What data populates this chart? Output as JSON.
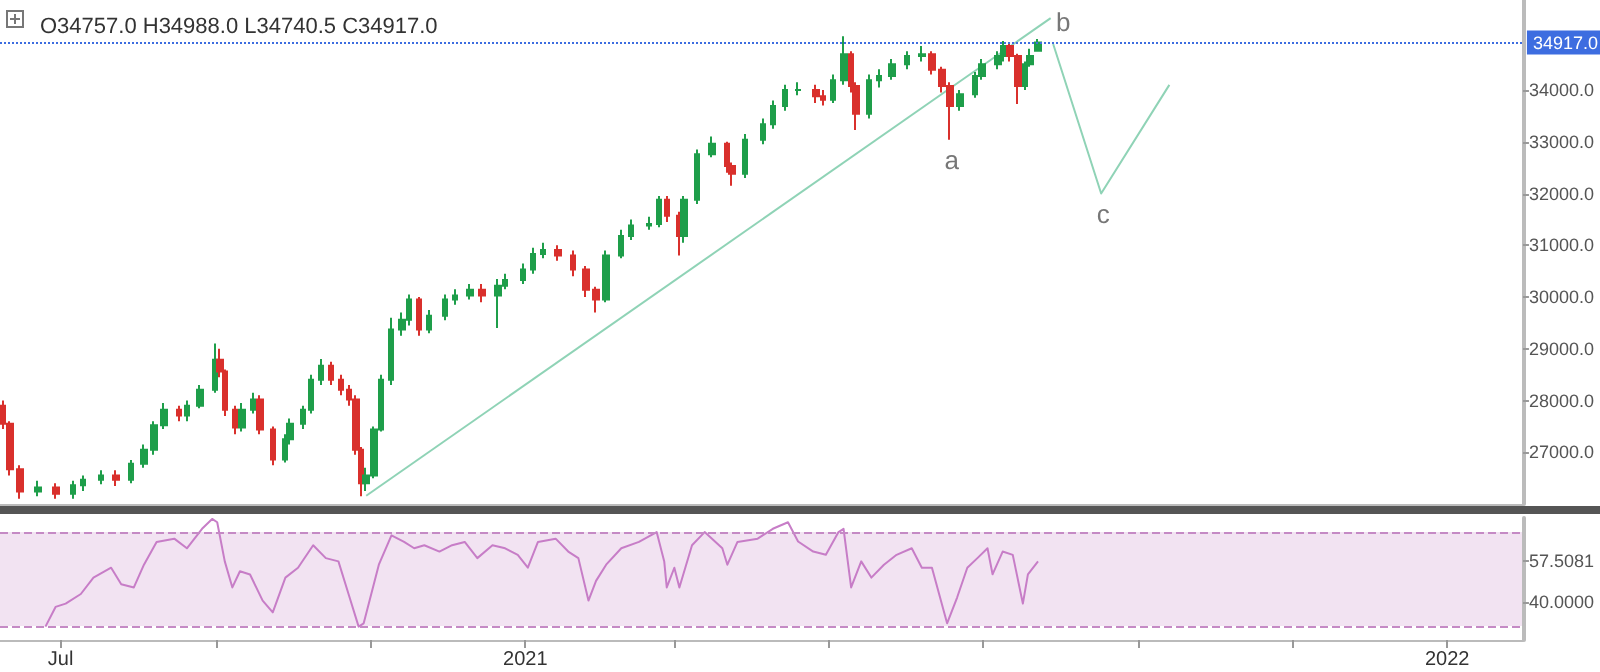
{
  "chart_data": [
    {
      "type": "candlestick",
      "title": "O34757.0 H34988.0 L34740.5 C34917.0",
      "grid": false,
      "tick_labels": "y",
      "marker": "none",
      "xlim": [
        "2020-06-07",
        "2022-01-31"
      ],
      "ylim": [
        26000,
        35740
      ],
      "yticks": [
        {
          "value": 27000,
          "label": "27000.0"
        },
        {
          "value": 28000,
          "label": "28000.0"
        },
        {
          "value": 29000,
          "label": "29000.0"
        },
        {
          "value": 30000,
          "label": "30000.0"
        },
        {
          "value": 31000,
          "label": "31000.0"
        },
        {
          "value": 32000,
          "label": "32000.0"
        },
        {
          "value": 33000,
          "label": "33000.0"
        },
        {
          "value": 34000,
          "label": "34000.0"
        }
      ],
      "x": [
        "2020-06-08",
        "2020-06-11",
        "2020-06-15",
        "2020-06-22",
        "2020-06-29",
        "2020-07-06",
        "2020-07-10",
        "2020-07-17",
        "2020-07-23",
        "2020-07-29",
        "2020-08-03",
        "2020-08-07",
        "2020-08-11",
        "2020-08-17",
        "2020-08-20",
        "2020-08-25",
        "2020-08-31",
        "2020-09-02",
        "2020-09-04",
        "2020-09-08",
        "2020-09-11",
        "2020-09-15",
        "2020-09-18",
        "2020-09-23",
        "2020-09-28",
        "2020-09-30",
        "2020-10-05",
        "2020-10-08",
        "2020-10-12",
        "2020-10-16",
        "2020-10-20",
        "2020-10-23",
        "2020-10-26",
        "2020-10-28",
        "2020-10-30",
        "2020-11-02",
        "2020-11-05",
        "2020-11-09",
        "2020-11-13",
        "2020-11-16",
        "2020-11-20",
        "2020-11-24",
        "2020-11-30",
        "2020-12-04",
        "2020-12-10",
        "2020-12-15",
        "2020-12-21",
        "2020-12-24",
        "2020-12-31",
        "2021-01-04",
        "2021-01-08",
        "2021-01-14",
        "2021-01-20",
        "2021-01-25",
        "2021-01-29",
        "2021-02-02",
        "2021-02-08",
        "2021-02-12",
        "2021-02-19",
        "2021-02-23",
        "2021-02-26",
        "2021-03-03",
        "2021-03-05",
        "2021-03-10",
        "2021-03-16",
        "2021-03-22",
        "2021-03-24",
        "2021-03-29",
        "2021-04-05",
        "2021-04-09",
        "2021-04-14",
        "2021-04-19",
        "2021-04-26",
        "2021-04-29",
        "2021-05-03",
        "2021-05-07",
        "2021-05-10",
        "2021-05-12",
        "2021-05-17",
        "2021-05-21",
        "2021-05-26",
        "2021-06-01",
        "2021-06-07",
        "2021-06-11",
        "2021-06-15",
        "2021-06-18",
        "2021-06-22",
        "2021-06-28",
        "2021-07-01",
        "2021-07-07",
        "2021-07-09",
        "2021-07-12",
        "2021-07-15",
        "2021-07-18",
        "2021-07-20",
        "2021-07-23"
      ],
      "ohlc": [
        [
          27900,
          28000,
          27450,
          27550
        ],
        [
          27550,
          27600,
          26550,
          26670
        ],
        [
          26670,
          26750,
          26100,
          26240
        ],
        [
          26240,
          26450,
          26150,
          26320
        ],
        [
          26320,
          26400,
          26100,
          26200
        ],
        [
          26200,
          26450,
          26100,
          26360
        ],
        [
          26360,
          26550,
          26250,
          26470
        ],
        [
          26470,
          26650,
          26380,
          26550
        ],
        [
          26550,
          26650,
          26350,
          26470
        ],
        [
          26470,
          26850,
          26400,
          26780
        ],
        [
          26780,
          27150,
          26700,
          27050
        ],
        [
          27050,
          27600,
          26950,
          27520
        ],
        [
          27520,
          27950,
          27450,
          27820
        ],
        [
          27820,
          27900,
          27600,
          27710
        ],
        [
          27710,
          28000,
          27600,
          27900
        ],
        [
          27900,
          28300,
          27850,
          28210
        ],
        [
          28210,
          29100,
          28150,
          28790
        ],
        [
          28790,
          29000,
          28450,
          28560
        ],
        [
          28560,
          28600,
          27700,
          27820
        ],
        [
          27820,
          27900,
          27350,
          27480
        ],
        [
          27480,
          27950,
          27400,
          27820
        ],
        [
          27820,
          28150,
          27750,
          28020
        ],
        [
          28020,
          28100,
          27350,
          27440
        ],
        [
          27440,
          27500,
          26750,
          26860
        ],
        [
          26860,
          27350,
          26800,
          27250
        ],
        [
          27250,
          27650,
          27150,
          27550
        ],
        [
          27550,
          27900,
          27450,
          27820
        ],
        [
          27820,
          28500,
          27750,
          28400
        ],
        [
          28400,
          28800,
          28300,
          28670
        ],
        [
          28670,
          28750,
          28300,
          28400
        ],
        [
          28400,
          28500,
          28100,
          28210
        ],
        [
          28210,
          28300,
          27900,
          28020
        ],
        [
          28020,
          28100,
          26950,
          27050
        ],
        [
          27050,
          27100,
          26150,
          26400
        ],
        [
          26400,
          26700,
          26250,
          26550
        ],
        [
          26550,
          27500,
          26500,
          27440
        ],
        [
          27440,
          28500,
          27400,
          28400
        ],
        [
          28400,
          29600,
          28300,
          29370
        ],
        [
          29370,
          29700,
          29250,
          29560
        ],
        [
          29560,
          30050,
          29450,
          29950
        ],
        [
          29950,
          30000,
          29250,
          29370
        ],
        [
          29370,
          29750,
          29300,
          29640
        ],
        [
          29640,
          30050,
          29550,
          29950
        ],
        [
          29950,
          30150,
          29850,
          30030
        ],
        [
          30030,
          30250,
          29950,
          30140
        ],
        [
          30140,
          30250,
          29900,
          30030
        ],
        [
          30030,
          30350,
          29400,
          30220
        ],
        [
          30220,
          30450,
          30150,
          30330
        ],
        [
          30330,
          30650,
          30250,
          30530
        ],
        [
          30530,
          30950,
          30450,
          30830
        ],
        [
          30830,
          31050,
          30750,
          30910
        ],
        [
          30910,
          31000,
          30700,
          30800
        ],
        [
          30800,
          30900,
          30400,
          30530
        ],
        [
          30530,
          30600,
          30000,
          30140
        ],
        [
          30140,
          30200,
          29700,
          29950
        ],
        [
          29950,
          30900,
          29900,
          30800
        ],
        [
          30800,
          31300,
          30750,
          31180
        ],
        [
          31180,
          31500,
          31100,
          31380
        ],
        [
          31380,
          31550,
          31300,
          31410
        ],
        [
          31410,
          31950,
          31350,
          31880
        ],
        [
          31880,
          31950,
          31450,
          31570
        ],
        [
          31570,
          31650,
          30800,
          31180
        ],
        [
          31180,
          31950,
          31050,
          31880
        ],
        [
          31880,
          32850,
          31800,
          32760
        ],
        [
          32760,
          33100,
          32700,
          32960
        ],
        [
          32960,
          33000,
          32400,
          32530
        ],
        [
          32530,
          32600,
          32150,
          32380
        ],
        [
          32380,
          33150,
          32300,
          33040
        ],
        [
          33040,
          33450,
          32950,
          33340
        ],
        [
          33340,
          33800,
          33250,
          33690
        ],
        [
          33690,
          34100,
          33600,
          34000
        ],
        [
          34000,
          34150,
          33900,
          34000
        ],
        [
          34000,
          34100,
          33750,
          33880
        ],
        [
          33880,
          34000,
          33700,
          33810
        ],
        [
          33810,
          34300,
          33750,
          34190
        ],
        [
          34190,
          35040,
          34100,
          34690
        ],
        [
          34690,
          34750,
          33950,
          34080
        ],
        [
          34080,
          34150,
          33230,
          33540
        ],
        [
          33540,
          34300,
          33450,
          34190
        ],
        [
          34190,
          34400,
          34050,
          34270
        ],
        [
          34270,
          34600,
          34200,
          34500
        ],
        [
          34500,
          34750,
          34400,
          34660
        ],
        [
          34660,
          34850,
          34550,
          34690
        ],
        [
          34690,
          34750,
          34300,
          34390
        ],
        [
          34390,
          34450,
          33950,
          34080
        ],
        [
          34080,
          34150,
          33040,
          33690
        ],
        [
          33690,
          34000,
          33600,
          33920
        ],
        [
          33920,
          34350,
          33850,
          34270
        ],
        [
          34270,
          34600,
          34200,
          34500
        ],
        [
          34500,
          34750,
          34400,
          34660
        ],
        [
          34660,
          34950,
          34550,
          34850
        ],
        [
          34850,
          34900,
          34550,
          34660
        ],
        [
          34660,
          34700,
          33730,
          34080
        ],
        [
          34080,
          34550,
          34000,
          34500
        ],
        [
          34500,
          34800,
          34450,
          34660
        ],
        [
          34757,
          34988,
          34740.5,
          34917
        ]
      ],
      "series": [
        {
          "type": "line",
          "color": "#8fd3b6",
          "x": [
            "2020-10-30",
            "2021-07-28"
          ],
          "values": [
            26160,
            35390
          ]
        },
        {
          "type": "line",
          "color": "#8fd3b6",
          "x": [
            "2021-07-29",
            "2021-08-17",
            "2021-09-13"
          ],
          "values": [
            34890,
            32000,
            34100
          ]
        }
      ],
      "ref_lines": [
        {
          "axis": "y",
          "value": 34917,
          "label": "34917.0",
          "color": "#3d6de0",
          "line_style": "dotted"
        }
      ],
      "annotations": [
        {
          "text": "a",
          "x": "2021-06-18",
          "y": 33040
        },
        {
          "text": "b",
          "x": "2021-07-29",
          "y": 34890
        },
        {
          "text": "c",
          "x": "2021-08-17",
          "y": 32000
        }
      ]
    },
    {
      "type": "line",
      "grid": false,
      "marker": "none",
      "color": "#c77dc7",
      "xlim": [
        "2020-06-07",
        "2022-01-31"
      ],
      "ylim": [
        24,
        76
      ],
      "xticks": [
        {
          "value": "2020-07-01",
          "label": "Jul"
        },
        {
          "value": "2020-09-01",
          "label": null
        },
        {
          "value": "2020-11-01",
          "label": null
        },
        {
          "value": "2021-01-01",
          "label": "2021"
        },
        {
          "value": "2021-03-01",
          "label": null
        },
        {
          "value": "2021-05-01",
          "label": null
        },
        {
          "value": "2021-07-01",
          "label": null
        },
        {
          "value": "2021-09-01",
          "label": null
        },
        {
          "value": "2021-11-01",
          "label": null
        },
        {
          "value": "2022-01-01",
          "label": "2022"
        }
      ],
      "yticks": [
        {
          "value": 40,
          "label": "40.0000"
        },
        {
          "value": 57.5081,
          "label": "57.5081"
        }
      ],
      "x": [
        "2020-06-25",
        "2020-06-29",
        "2020-07-03",
        "2020-07-09",
        "2020-07-14",
        "2020-07-21",
        "2020-07-25",
        "2020-07-30",
        "2020-08-03",
        "2020-08-08",
        "2020-08-15",
        "2020-08-20",
        "2020-08-26",
        "2020-08-30",
        "2020-09-01",
        "2020-09-04",
        "2020-09-07",
        "2020-09-10",
        "2020-09-14",
        "2020-09-19",
        "2020-09-23",
        "2020-09-28",
        "2020-10-03",
        "2020-10-09",
        "2020-10-14",
        "2020-10-19",
        "2020-10-23",
        "2020-10-27",
        "2020-10-29",
        "2020-11-04",
        "2020-11-09",
        "2020-11-14",
        "2020-11-18",
        "2020-11-22",
        "2020-11-28",
        "2020-12-03",
        "2020-12-08",
        "2020-12-13",
        "2020-12-19",
        "2020-12-24",
        "2020-12-29",
        "2021-01-02",
        "2021-01-06",
        "2021-01-13",
        "2021-01-18",
        "2021-01-22",
        "2021-01-26",
        "2021-01-29",
        "2021-02-02",
        "2021-02-08",
        "2021-02-15",
        "2021-02-22",
        "2021-02-25",
        "2021-02-26",
        "2021-03-01",
        "2021-03-03",
        "2021-03-08",
        "2021-03-13",
        "2021-03-20",
        "2021-03-22",
        "2021-03-26",
        "2021-04-03",
        "2021-04-09",
        "2021-04-15",
        "2021-04-19",
        "2021-04-25",
        "2021-04-30",
        "2021-05-05",
        "2021-05-07",
        "2021-05-10",
        "2021-05-14",
        "2021-05-18",
        "2021-05-23",
        "2021-05-28",
        "2021-06-03",
        "2021-06-07",
        "2021-06-11",
        "2021-06-17",
        "2021-06-21",
        "2021-06-25",
        "2021-06-29",
        "2021-07-03",
        "2021-07-05",
        "2021-07-09",
        "2021-07-13",
        "2021-07-17",
        "2021-07-19",
        "2021-07-23"
      ],
      "values": [
        29.7,
        38.1,
        39.5,
        43.6,
        50.6,
        54.8,
        47.8,
        46.4,
        56.1,
        65.8,
        67.2,
        63.1,
        71.4,
        75.6,
        74.2,
        57.5,
        46.4,
        53.3,
        51.9,
        40.8,
        35.8,
        50.6,
        54.8,
        64.4,
        58.9,
        57.5,
        43.6,
        29.7,
        31.1,
        56.1,
        68.6,
        65.8,
        63.1,
        64.4,
        61.7,
        64.4,
        65.8,
        58.9,
        64.4,
        63.1,
        60.3,
        54.8,
        65.8,
        67.2,
        61.7,
        58.9,
        40.8,
        49.2,
        56.1,
        63.1,
        65.8,
        70.0,
        57.5,
        46.4,
        54.8,
        46.4,
        64.4,
        70.0,
        63.1,
        56.1,
        65.8,
        67.2,
        71.4,
        74.2,
        66.0,
        61.7,
        60.3,
        70.0,
        71.4,
        46.4,
        57.5,
        50.6,
        56.1,
        60.3,
        63.1,
        54.8,
        54.8,
        31.1,
        42.2,
        54.8,
        58.9,
        63.1,
        52.0,
        61.7,
        60.3,
        39.5,
        52.0,
        57.5081
      ],
      "ref_lines": [
        {
          "axis": "y",
          "value": 70,
          "color": "#c58ac5",
          "line_style": "dashed"
        },
        {
          "axis": "y",
          "value": 30,
          "color": "#c58ac5",
          "line_style": "dashed"
        }
      ],
      "bands": [
        {
          "axis": "y",
          "from": 30,
          "to": 70,
          "color": "#f2e3f2"
        }
      ]
    }
  ]
}
